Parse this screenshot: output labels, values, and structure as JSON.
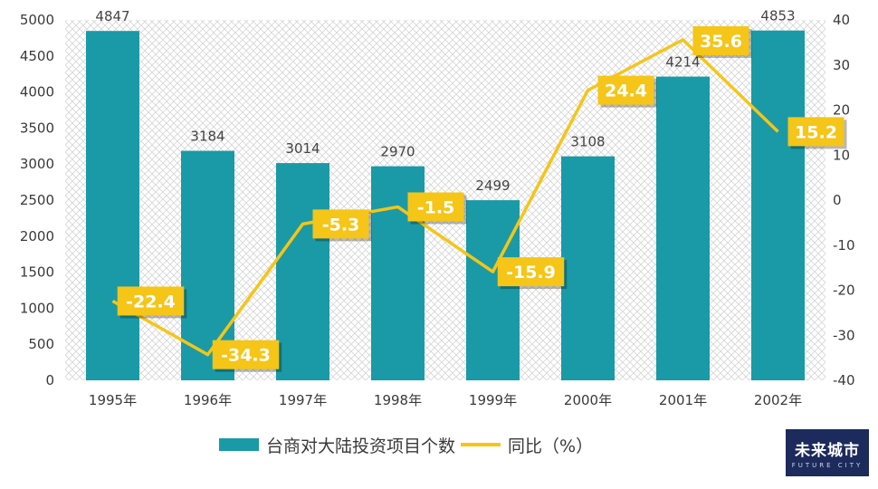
{
  "chart_data": {
    "type": "bar+line",
    "categories": [
      "1995年",
      "1996年",
      "1997年",
      "1998年",
      "1999年",
      "2000年",
      "2001年",
      "2002年"
    ],
    "series": [
      {
        "name": "台商对大陆投资项目个数",
        "type": "bar",
        "axis": "left",
        "values": [
          4847,
          3184,
          3014,
          2970,
          2499,
          3108,
          4214,
          4853
        ]
      },
      {
        "name": "同比（%）",
        "type": "line",
        "axis": "right",
        "values": [
          -22.4,
          -34.3,
          -5.3,
          -1.5,
          -15.9,
          24.4,
          35.6,
          15.2
        ]
      }
    ],
    "left_axis": {
      "min": 0,
      "max": 5000,
      "step": 500
    },
    "right_axis": {
      "min": -40,
      "max": 40,
      "step": 10
    },
    "legend": "bottom",
    "colors": {
      "bar": "#1a9aa6",
      "line": "#f5c518",
      "label_box": "#f5c518"
    }
  },
  "legend": {
    "bar_label": "台商对大陆投资项目个数",
    "line_label": "同比（%）"
  },
  "logo": {
    "main": "未来城市",
    "sub": "FUTURE CITY"
  }
}
